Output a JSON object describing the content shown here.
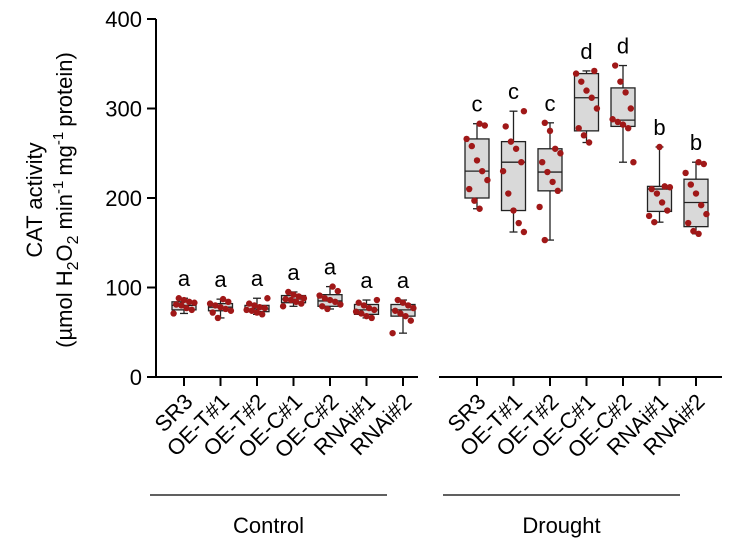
{
  "chart_data": {
    "type": "box",
    "y_label_line1": "CAT activity",
    "y_label_unit": "µmol H",
    "y_label_sub2": "2",
    "y_label_O": "O",
    "y_label_min": "min",
    "y_label_mg": "mg",
    "y_label_protein": "protein)",
    "y_label_open": "(",
    "y_label_sup_neg1": "-1",
    "ylim": [
      0,
      400
    ],
    "yticks": [
      "0",
      "100",
      "200",
      "300",
      "400"
    ],
    "ytick_values": [
      0,
      100,
      200,
      300,
      400
    ],
    "groups": [
      {
        "name": "Control",
        "categories": [
          "SR3",
          "OE-T#1",
          "OE-T#2",
          "OE-C#1",
          "OE-C#2",
          "RNAi#1",
          "RNAi#2"
        ],
        "letters": [
          "a",
          "a",
          "a",
          "a",
          "a",
          "a",
          "a"
        ],
        "boxes": [
          {
            "min": 71,
            "q1": 75,
            "median": 80,
            "q3": 84,
            "max": 88
          },
          {
            "min": 66,
            "q1": 74,
            "median": 78,
            "q3": 82,
            "max": 87
          },
          {
            "min": 70,
            "q1": 73,
            "median": 76,
            "q3": 80,
            "max": 88
          },
          {
            "min": 79,
            "q1": 83,
            "median": 87,
            "q3": 91,
            "max": 95
          },
          {
            "min": 76,
            "q1": 79,
            "median": 85,
            "q3": 92,
            "max": 101
          },
          {
            "min": 66,
            "q1": 70,
            "median": 75,
            "q3": 81,
            "max": 86
          },
          {
            "min": 49,
            "q1": 68,
            "median": 75,
            "q3": 81,
            "max": 86
          }
        ],
        "points": [
          [
            71,
            75,
            77,
            80,
            81,
            83,
            84,
            86,
            88
          ],
          [
            66,
            72,
            74,
            76,
            78,
            80,
            82,
            84,
            87
          ],
          [
            70,
            72,
            74,
            75,
            77,
            78,
            80,
            82,
            88
          ],
          [
            79,
            82,
            84,
            86,
            87,
            88,
            90,
            92,
            95
          ],
          [
            76,
            79,
            81,
            84,
            86,
            88,
            91,
            96,
            101
          ],
          [
            66,
            68,
            71,
            73,
            75,
            77,
            80,
            83,
            86
          ],
          [
            49,
            63,
            68,
            71,
            74,
            77,
            80,
            83,
            86
          ]
        ]
      },
      {
        "name": "Drought",
        "categories": [
          "SR3",
          "OE-T#1",
          "OE-T#2",
          "OE-C#1",
          "OE-C#2",
          "RNAi#1",
          "RNAi#2"
        ],
        "letters": [
          "c",
          "c",
          "c",
          "d",
          "d",
          "b",
          "b"
        ],
        "boxes": [
          {
            "min": 188,
            "q1": 200,
            "median": 230,
            "q3": 266,
            "max": 283
          },
          {
            "min": 162,
            "q1": 186,
            "median": 240,
            "q3": 263,
            "max": 297
          },
          {
            "min": 153,
            "q1": 208,
            "median": 229,
            "q3": 255,
            "max": 284
          },
          {
            "min": 262,
            "q1": 275,
            "median": 312,
            "q3": 339,
            "max": 342
          },
          {
            "min": 240,
            "q1": 280,
            "median": 287,
            "q3": 323,
            "max": 348
          },
          {
            "min": 173,
            "q1": 185,
            "median": 210,
            "q3": 213,
            "max": 257
          },
          {
            "min": 160,
            "q1": 168,
            "median": 195,
            "q3": 221,
            "max": 240
          }
        ],
        "points": [
          [
            188,
            197,
            210,
            220,
            230,
            242,
            258,
            266,
            281,
            283
          ],
          [
            162,
            172,
            186,
            205,
            230,
            240,
            255,
            263,
            280,
            297
          ],
          [
            153,
            190,
            208,
            218,
            229,
            240,
            250,
            255,
            275,
            284
          ],
          [
            262,
            270,
            278,
            300,
            312,
            320,
            330,
            339,
            342
          ],
          [
            240,
            278,
            282,
            285,
            288,
            300,
            318,
            330,
            348
          ],
          [
            173,
            180,
            186,
            195,
            205,
            210,
            212,
            213,
            257
          ],
          [
            160,
            163,
            172,
            182,
            192,
            205,
            215,
            228,
            238,
            240
          ]
        ]
      }
    ],
    "colors": {
      "point": "#a01818",
      "box_fill": "#d9d9d9",
      "axis": "#000000"
    }
  }
}
